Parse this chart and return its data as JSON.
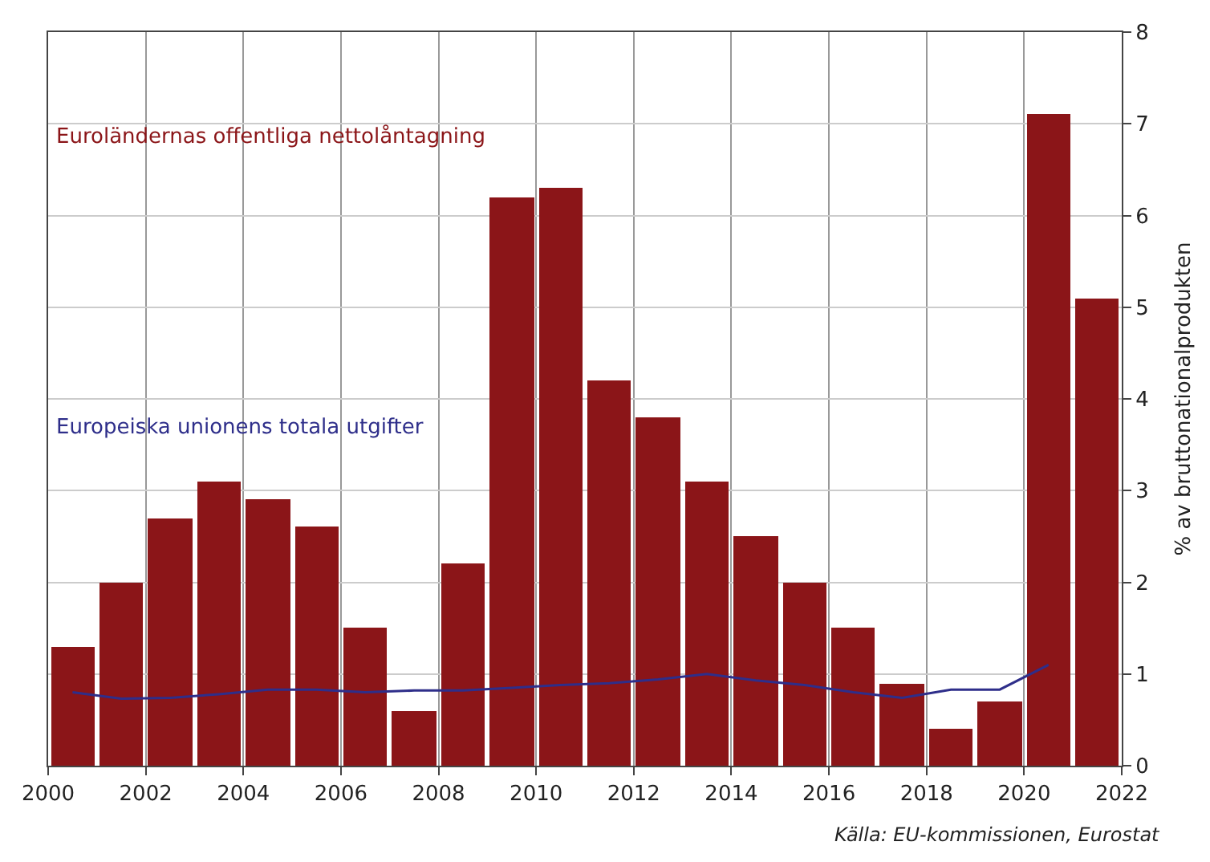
{
  "chart_data": {
    "type": "bar",
    "ylabel": "% av bruttonationalprodukten",
    "xlim": [
      2000,
      2022
    ],
    "xticks": [
      2000,
      2002,
      2004,
      2006,
      2008,
      2010,
      2012,
      2014,
      2016,
      2018,
      2020,
      2022
    ],
    "ylim": [
      0,
      8
    ],
    "yticks": [
      0,
      1,
      2,
      3,
      4,
      5,
      6,
      7,
      8
    ],
    "grid": true,
    "legend": false,
    "series": [
      {
        "name": "Euroländernas offentliga nettolåntagning",
        "color": "#8b1518",
        "x": [
          2000.5,
          2001.5,
          2002.5,
          2003.5,
          2004.5,
          2005.5,
          2006.5,
          2007.5,
          2008.5,
          2009.5,
          2010.5,
          2011.5,
          2012.5,
          2013.5,
          2014.5,
          2015.5,
          2016.5,
          2017.5,
          2018.5,
          2019.5,
          2020.5,
          2021.5
        ],
        "values": [
          1.3,
          2.0,
          2.7,
          3.1,
          2.9,
          2.6,
          1.5,
          0.6,
          2.2,
          6.2,
          6.3,
          4.2,
          3.8,
          3.1,
          2.5,
          2.0,
          1.5,
          0.9,
          0.4,
          0.7,
          7.1,
          5.1
        ]
      },
      {
        "name": "Europeiska unionens totala utgifter",
        "type": "line",
        "color": "#2e2e8a",
        "x": [
          2000.5,
          2001.5,
          2002.5,
          2003.5,
          2004.5,
          2005.5,
          2006.5,
          2007.5,
          2008.5,
          2009.5,
          2010.5,
          2011.5,
          2012.5,
          2013.5,
          2014.5,
          2015.5,
          2016.5,
          2017.5,
          2018.5,
          2019.5,
          2020.5
        ],
        "values": [
          0.8,
          0.73,
          0.74,
          0.78,
          0.83,
          0.83,
          0.8,
          0.82,
          0.82,
          0.85,
          0.88,
          0.9,
          0.94,
          1.0,
          0.93,
          0.88,
          0.8,
          0.74,
          0.83,
          0.83,
          1.1
        ]
      }
    ],
    "annotations": [
      "Källa: EU-kommissionen, Eurostat"
    ]
  }
}
